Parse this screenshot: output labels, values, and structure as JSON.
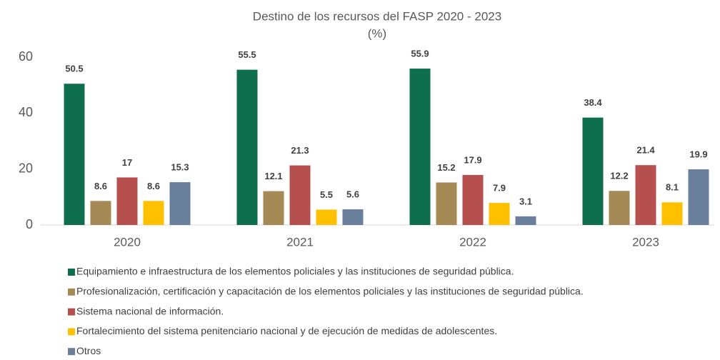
{
  "chart_data": {
    "type": "bar",
    "title": "Destino de los recursos del FASP 2020 - 2023",
    "subtitle": "(%)",
    "categories": [
      "2020",
      "2021",
      "2022",
      "2023"
    ],
    "series": [
      {
        "name": "Equipamiento e infraestructura de los elementos policiales y las instituciones de seguridad pública.",
        "color": "#0e6e4e",
        "values": [
          50.5,
          55.5,
          55.9,
          38.4
        ]
      },
      {
        "name": "Profesionalización, certificación y capacitación de los elementos policiales y las instituciones de seguridad pública.",
        "color": "#a58a55",
        "values": [
          8.6,
          12.1,
          15.2,
          12.2
        ]
      },
      {
        "name": "Sistema nacional de información.",
        "color": "#b5504f",
        "values": [
          17,
          21.3,
          17.9,
          21.4
        ]
      },
      {
        "name": "Fortalecimiento del sistema penitenciario nacional y de ejecución de medidas de adolescentes.",
        "color": "#ffc000",
        "values": [
          8.6,
          5.5,
          7.9,
          8.1
        ]
      },
      {
        "name": "Otros",
        "color": "#6a7f9c",
        "values": [
          15.3,
          5.6,
          3.1,
          19.9
        ]
      }
    ],
    "ylim": [
      0,
      60
    ],
    "yticks": [
      0,
      20,
      40,
      60
    ],
    "grid": false,
    "legend": "bottom"
  }
}
